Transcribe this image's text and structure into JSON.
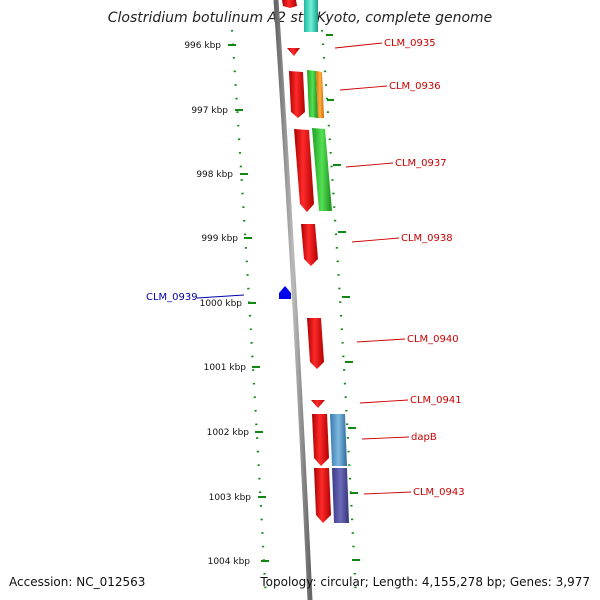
{
  "title": "Clostridium botulinum A2 str. Kyoto, complete genome",
  "accession": "Accession: NC_012563",
  "topology": "Topology: circular; Length: 4,155,278 bp; Genes: 3,977",
  "kbp_labels": [
    "996 kbp",
    "997 kbp",
    "998 kbp",
    "999 kbp",
    "1000 kbp",
    "1001 kbp",
    "1002 kbp",
    "1003 kbp",
    "1004 kbp"
  ],
  "genes": [
    {
      "name": "CLM_0935",
      "strand": "forward"
    },
    {
      "name": "CLM_0936",
      "strand": "forward"
    },
    {
      "name": "CLM_0937",
      "strand": "forward"
    },
    {
      "name": "CLM_0938",
      "strand": "forward"
    },
    {
      "name": "CLM_0939",
      "strand": "reverse"
    },
    {
      "name": "CLM_0940",
      "strand": "forward"
    },
    {
      "name": "CLM_0941",
      "strand": "forward"
    },
    {
      "name": "dapB",
      "strand": "forward"
    },
    {
      "name": "CLM_0943",
      "strand": "forward"
    }
  ],
  "colors": {
    "forward_gene": "#ee0000",
    "reverse_gene": "#0000ee",
    "backbone": "#888888",
    "ticks": "#118811",
    "label_forward": "#cc0000",
    "label_reverse": "#0000aa"
  }
}
